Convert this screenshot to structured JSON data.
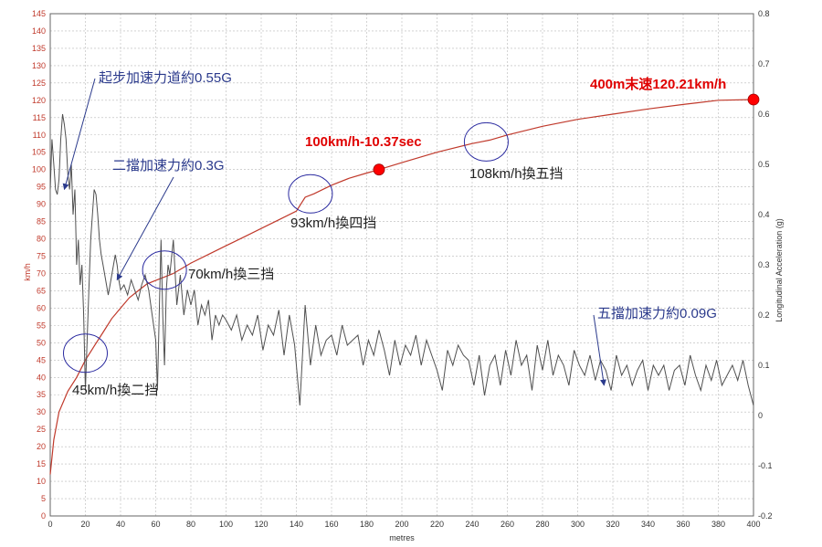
{
  "chart_data": {
    "type": "line",
    "title": "",
    "xlabel": "metres",
    "ylabel_left": "km/h",
    "ylabel_right": "Longitudinal Acceleration (g)",
    "xlim": [
      0,
      400
    ],
    "ylim_left": [
      0,
      145
    ],
    "ylim_right": [
      -0.2,
      0.8
    ],
    "grid": true,
    "x_ticks": [
      0,
      20,
      40,
      60,
      80,
      100,
      120,
      140,
      160,
      180,
      200,
      220,
      240,
      260,
      280,
      300,
      320,
      340,
      360,
      380,
      400
    ],
    "y_left_ticks": [
      0,
      5,
      10,
      15,
      20,
      25,
      30,
      35,
      40,
      45,
      50,
      55,
      60,
      65,
      70,
      75,
      80,
      85,
      90,
      95,
      100,
      105,
      110,
      115,
      120,
      125,
      130,
      135,
      140,
      145
    ],
    "y_right_ticks": [
      -0.2,
      -0.1,
      0,
      0.1,
      0.2,
      0.3,
      0.4,
      0.5,
      0.6,
      0.7,
      0.8
    ],
    "colors": {
      "speed": "#c0392b",
      "accel": "#505050",
      "grid": "#b8b8b8",
      "marker": "#ff0000",
      "circle": "#2a2aa0",
      "blue_text": "#2b3a8c",
      "red_text": "#e00000",
      "black_text": "#222222"
    },
    "series": [
      {
        "axis": "left",
        "x": [
          0,
          2,
          5,
          10,
          15,
          20,
          25,
          30,
          35,
          40,
          45,
          50,
          55,
          60,
          65,
          70,
          80,
          90,
          100,
          110,
          120,
          130,
          140,
          145,
          150,
          160,
          170,
          180,
          187,
          200,
          220,
          240,
          245,
          250,
          260,
          280,
          300,
          320,
          340,
          360,
          380,
          400
        ],
        "y": [
          12,
          22,
          30,
          36,
          40,
          45,
          49,
          53,
          57,
          60,
          63,
          65,
          67,
          68,
          69,
          70,
          73,
          75.5,
          78,
          80.5,
          83,
          85.5,
          88,
          92,
          93,
          95.5,
          97.5,
          99,
          100,
          102,
          105,
          107.5,
          108,
          108.5,
          110,
          112.5,
          114.5,
          116,
          117.5,
          118.8,
          120,
          120.21
        ]
      },
      {
        "axis": "right",
        "x": [
          0,
          1,
          2,
          3,
          4,
          5,
          6,
          7,
          8,
          9,
          10,
          11,
          12,
          13,
          14,
          15,
          16,
          17,
          18,
          19,
          20,
          21,
          22,
          23,
          24,
          25,
          26,
          27,
          28,
          29,
          30,
          31,
          32,
          33,
          34,
          35,
          36,
          37,
          38,
          39,
          40,
          42,
          44,
          46,
          48,
          50,
          52,
          54,
          56,
          58,
          60,
          61,
          62,
          63,
          64,
          65,
          66,
          67,
          68,
          70,
          72,
          74,
          76,
          78,
          80,
          82,
          84,
          86,
          88,
          90,
          92,
          94,
          96,
          98,
          100,
          103,
          106,
          109,
          112,
          115,
          118,
          121,
          124,
          127,
          130,
          133,
          136,
          139,
          142,
          145,
          148,
          151,
          154,
          157,
          160,
          163,
          166,
          169,
          172,
          175,
          178,
          181,
          184,
          187,
          190,
          193,
          196,
          199,
          202,
          205,
          208,
          211,
          214,
          217,
          220,
          223,
          226,
          229,
          232,
          235,
          238,
          241,
          244,
          247,
          250,
          253,
          256,
          259,
          262,
          265,
          268,
          271,
          274,
          277,
          280,
          283,
          286,
          289,
          292,
          295,
          298,
          301,
          304,
          307,
          310,
          313,
          316,
          319,
          322,
          325,
          328,
          331,
          334,
          337,
          340,
          343,
          346,
          349,
          352,
          355,
          358,
          361,
          364,
          367,
          370,
          373,
          376,
          379,
          382,
          385,
          388,
          391,
          394,
          397,
          400
        ],
        "y": [
          0.45,
          0.55,
          0.5,
          0.45,
          0.44,
          0.47,
          0.55,
          0.6,
          0.58,
          0.55,
          0.48,
          0.45,
          0.5,
          0.4,
          0.45,
          0.3,
          0.35,
          0.26,
          0.3,
          0.2,
          0.05,
          0.15,
          0.25,
          0.35,
          0.4,
          0.45,
          0.44,
          0.4,
          0.35,
          0.32,
          0.3,
          0.28,
          0.26,
          0.24,
          0.26,
          0.28,
          0.3,
          0.32,
          0.3,
          0.27,
          0.25,
          0.26,
          0.24,
          0.27,
          0.25,
          0.23,
          0.26,
          0.28,
          0.25,
          0.2,
          0.15,
          0.05,
          0.2,
          0.35,
          0.2,
          0.1,
          0.25,
          0.3,
          0.28,
          0.35,
          0.22,
          0.28,
          0.2,
          0.25,
          0.22,
          0.25,
          0.18,
          0.22,
          0.2,
          0.23,
          0.15,
          0.2,
          0.18,
          0.2,
          0.19,
          0.17,
          0.2,
          0.15,
          0.18,
          0.16,
          0.2,
          0.13,
          0.18,
          0.16,
          0.21,
          0.12,
          0.2,
          0.14,
          0.02,
          0.22,
          0.1,
          0.18,
          0.12,
          0.15,
          0.16,
          0.12,
          0.18,
          0.14,
          0.15,
          0.16,
          0.1,
          0.15,
          0.12,
          0.17,
          0.13,
          0.08,
          0.15,
          0.1,
          0.14,
          0.12,
          0.16,
          0.1,
          0.15,
          0.12,
          0.09,
          0.05,
          0.13,
          0.1,
          0.14,
          0.12,
          0.11,
          0.06,
          0.12,
          0.04,
          0.1,
          0.12,
          0.06,
          0.13,
          0.08,
          0.15,
          0.1,
          0.12,
          0.05,
          0.14,
          0.09,
          0.15,
          0.08,
          0.12,
          0.1,
          0.06,
          0.13,
          0.1,
          0.08,
          0.12,
          0.07,
          0.11,
          0.09,
          0.05,
          0.12,
          0.08,
          0.1,
          0.06,
          0.09,
          0.11,
          0.05,
          0.1,
          0.08,
          0.1,
          0.05,
          0.09,
          0.1,
          0.06,
          0.12,
          0.08,
          0.05,
          0.1,
          0.07,
          0.11,
          0.06,
          0.08,
          0.1,
          0.07,
          0.11,
          0.06,
          0.02
        ]
      }
    ],
    "markers": [
      {
        "x": 187,
        "y": 100
      },
      {
        "x": 400,
        "y": 120.21
      }
    ],
    "circles": [
      {
        "cx": 20,
        "cy": 47
      },
      {
        "cx": 65,
        "cy": 71
      },
      {
        "cx": 148,
        "cy": 93
      },
      {
        "cx": 248,
        "cy": 108
      }
    ],
    "annotations": [
      {
        "text": "起步加速力道約0.55G",
        "style": "blue",
        "arrow_to": [
          8,
          0.45
        ]
      },
      {
        "text": "二擋加速力約0.3G",
        "style": "blue",
        "arrow_to": [
          38,
          0.27
        ]
      },
      {
        "text": "五擋加速力約0.09G",
        "style": "blue",
        "arrow_to": [
          315,
          0.06
        ]
      },
      {
        "text": "45km/h換二挡",
        "style": "black"
      },
      {
        "text": "70km/h換三挡",
        "style": "black"
      },
      {
        "text": "93km/h換四挡",
        "style": "black"
      },
      {
        "text": "108km/h換五挡",
        "style": "black"
      },
      {
        "text": "100km/h-10.37sec",
        "style": "red"
      },
      {
        "text": "400m末速120.21km/h",
        "style": "red"
      }
    ]
  }
}
